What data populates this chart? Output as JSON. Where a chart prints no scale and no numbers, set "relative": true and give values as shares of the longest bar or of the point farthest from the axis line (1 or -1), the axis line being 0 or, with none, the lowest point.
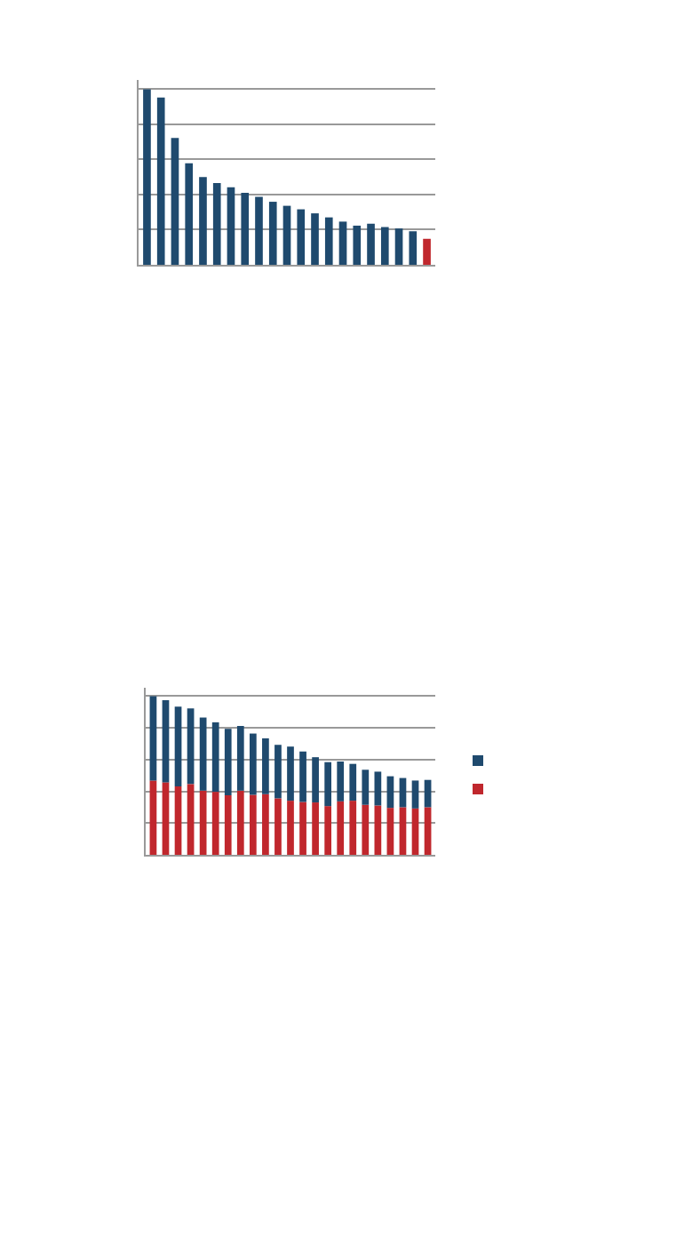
{
  "chart_data": [
    {
      "type": "bar",
      "relative": true,
      "grid": "y",
      "legend": false,
      "categories": [
        null,
        null,
        null,
        null,
        null,
        null,
        null,
        null,
        null,
        null,
        null,
        null,
        null,
        null,
        null,
        null,
        null,
        null,
        null,
        null,
        null
      ],
      "values": [
        1,
        0.953,
        0.723,
        0.578,
        0.5,
        0.465,
        0.441,
        0.41,
        0.387,
        0.359,
        0.336,
        0.316,
        0.293,
        0.27,
        0.246,
        0.223,
        0.234,
        0.215,
        0.207,
        0.191,
        0.148
      ],
      "colors": [
        "#1f4a6e",
        "#1f4a6e",
        "#1f4a6e",
        "#1f4a6e",
        "#1f4a6e",
        "#1f4a6e",
        "#1f4a6e",
        "#1f4a6e",
        "#1f4a6e",
        "#1f4a6e",
        "#1f4a6e",
        "#1f4a6e",
        "#1f4a6e",
        "#1f4a6e",
        "#1f4a6e",
        "#1f4a6e",
        "#1f4a6e",
        "#1f4a6e",
        "#1f4a6e",
        "#1f4a6e",
        "#c0272d"
      ]
    },
    {
      "type": "bar",
      "relative": true,
      "stacked": true,
      "grid": "y",
      "categories": [
        null,
        null,
        null,
        null,
        null,
        null,
        null,
        null,
        null,
        null,
        null,
        null,
        null,
        null,
        null,
        null,
        null,
        null,
        null,
        null,
        null,
        null,
        null
      ],
      "series": [
        {
          "color": "#c0272d",
          "values": [
            0.468,
            0.457,
            0.431,
            0.446,
            0.404,
            0.397,
            0.375,
            0.404,
            0.378,
            0.382,
            0.356,
            0.341,
            0.333,
            0.33,
            0.307,
            0.337,
            0.341,
            0.315,
            0.311,
            0.296,
            0.3,
            0.292,
            0.3
          ]
        },
        {
          "color": "#1f4a6e",
          "values": [
            0.532,
            0.517,
            0.502,
            0.476,
            0.461,
            0.438,
            0.419,
            0.408,
            0.386,
            0.352,
            0.337,
            0.341,
            0.318,
            0.285,
            0.277,
            0.251,
            0.232,
            0.221,
            0.213,
            0.199,
            0.184,
            0.176,
            0.172
          ]
        }
      ]
    }
  ]
}
